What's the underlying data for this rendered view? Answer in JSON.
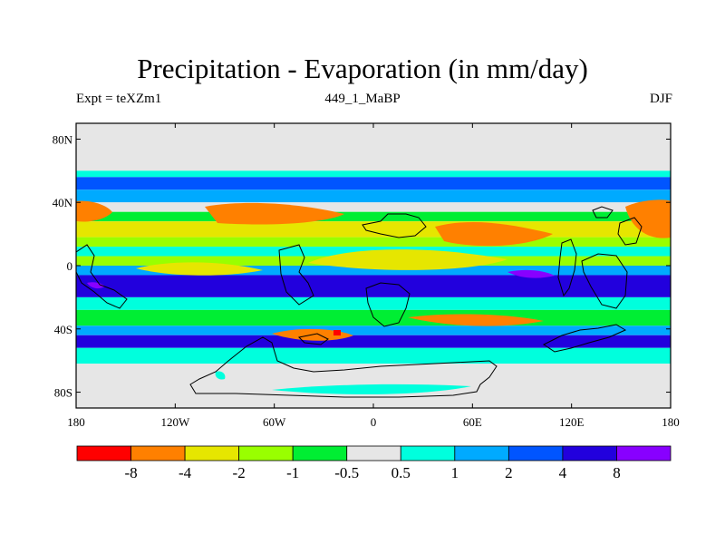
{
  "header": {
    "title": "Precipitation - Evaporation (in mm/day)",
    "left_label": "Expt = teXZm1",
    "center_label": "449_1_MaBP",
    "right_label": "DJF"
  },
  "chart_data": {
    "type": "heatmap",
    "projection": "cylindrical-equidistant",
    "title": "Precipitation - Evaporation (in mm/day)",
    "xlim": [
      -180,
      180
    ],
    "ylim": [
      -90,
      90
    ],
    "x_ticks": [
      {
        "value": -180,
        "label": "180"
      },
      {
        "value": -120,
        "label": "120W"
      },
      {
        "value": -60,
        "label": "60W"
      },
      {
        "value": 0,
        "label": "0"
      },
      {
        "value": 60,
        "label": "60E"
      },
      {
        "value": 120,
        "label": "120E"
      },
      {
        "value": 180,
        "label": "180"
      }
    ],
    "y_ticks": [
      {
        "value": 80,
        "label": "80N"
      },
      {
        "value": 40,
        "label": "40N"
      },
      {
        "value": 0,
        "label": "0"
      },
      {
        "value": -40,
        "label": "40S"
      },
      {
        "value": -80,
        "label": "80S"
      }
    ],
    "colorbar": {
      "colors": [
        "#ff0000",
        "#ff8000",
        "#e6e600",
        "#99ff00",
        "#00ee33",
        "#e6e6e6",
        "#00ffdd",
        "#00aaff",
        "#0055ff",
        "#2200dd",
        "#8800ff"
      ],
      "boundary_labels": [
        "-8",
        "-4",
        "-2",
        "-1",
        "-0.5",
        "0.5",
        "1",
        "2",
        "4",
        "8"
      ]
    },
    "zonal_bands": [
      {
        "lat": [
          60,
          90
        ],
        "class": "neutral"
      },
      {
        "lat": [
          56,
          60
        ],
        "class": "0.5 to 1"
      },
      {
        "lat": [
          48,
          56
        ],
        "class": "2 to 4"
      },
      {
        "lat": [
          40,
          48
        ],
        "class": "1 to 2"
      },
      {
        "lat": [
          34,
          40
        ],
        "class": "-0.5 to 0.5"
      },
      {
        "lat": [
          28,
          34
        ],
        "class": "-1 to -0.5"
      },
      {
        "lat": [
          18,
          28
        ],
        "class": "-4 to -2"
      },
      {
        "lat": [
          12,
          18
        ],
        "class": "-2 to -1"
      },
      {
        "lat": [
          6,
          12
        ],
        "class": "0.5 to 1"
      },
      {
        "lat": [
          0,
          6
        ],
        "class": "-2 to -1"
      },
      {
        "lat": [
          -6,
          0
        ],
        "class": "1 to 2"
      },
      {
        "lat": [
          -20,
          -6
        ],
        "class": "4 to 8"
      },
      {
        "lat": [
          -28,
          -20
        ],
        "class": "0.5 to 1"
      },
      {
        "lat": [
          -38,
          -28
        ],
        "class": "-1 to -0.5"
      },
      {
        "lat": [
          -44,
          -38
        ],
        "class": "1 to 2"
      },
      {
        "lat": [
          -52,
          -44
        ],
        "class": "4 to 8"
      },
      {
        "lat": [
          -62,
          -52
        ],
        "class": "0.5 to 1"
      },
      {
        "lat": [
          -90,
          -62
        ],
        "class": "neutral"
      }
    ],
    "grid": false
  }
}
